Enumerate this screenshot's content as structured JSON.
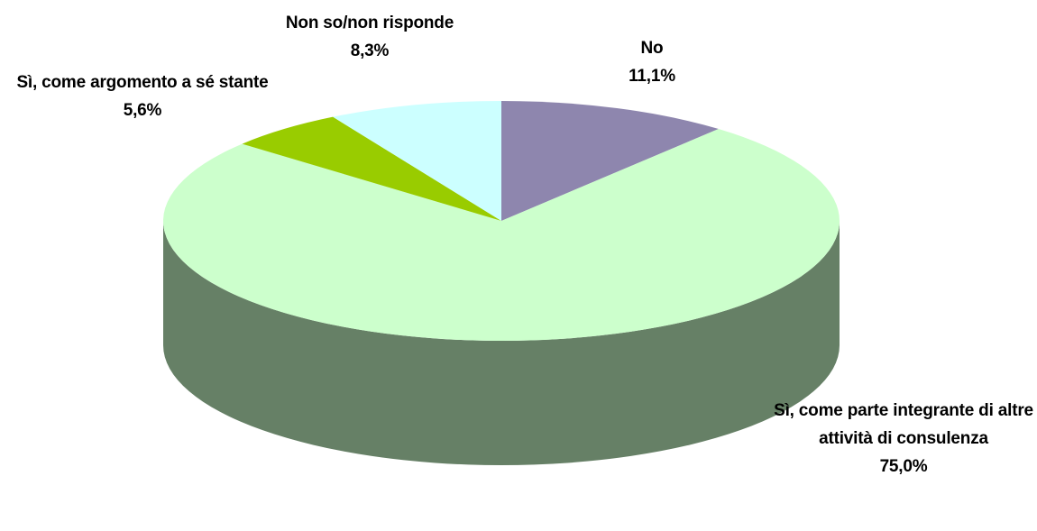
{
  "chart_data": {
    "type": "pie",
    "categories": [
      "No",
      "Sì, come parte integrante di altre attività di consulenza",
      "Sì, come argomento a sé stante",
      "Non so/non risponde"
    ],
    "values": [
      11.1,
      75.0,
      5.6,
      8.3
    ],
    "value_labels": [
      "11,1%",
      "75,0%",
      "5,6%",
      "8,3%"
    ],
    "colors": [
      "#8e86ae",
      "#ccffcc",
      "#99cc00",
      "#ccffff"
    ]
  }
}
